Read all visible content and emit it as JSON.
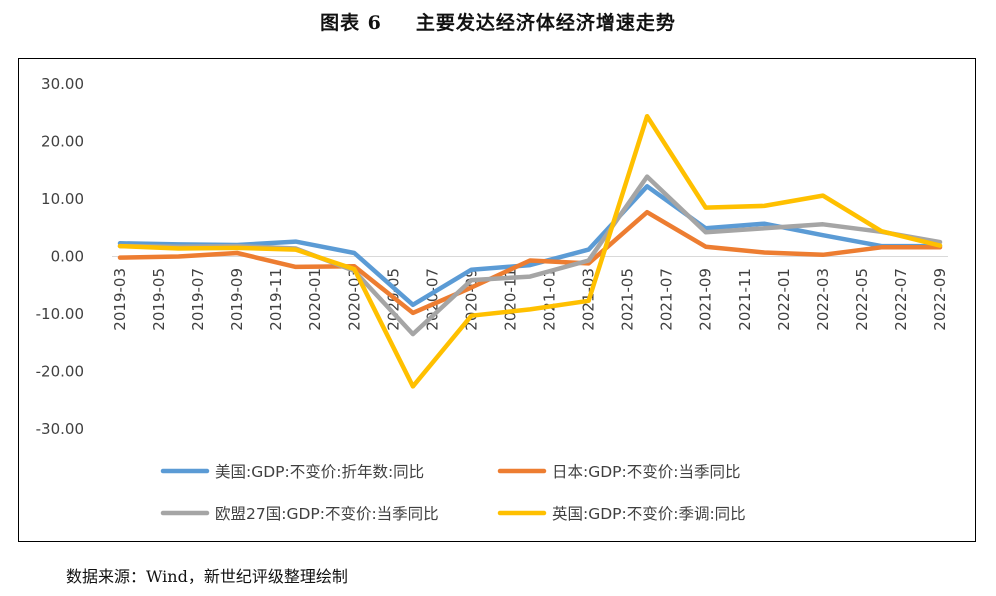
{
  "figure": {
    "label": "图表 6",
    "caption": "主要发达经济体经济增速走势"
  },
  "source_note": "数据来源：Wind，新世纪评级整理绘制",
  "chart_data": {
    "type": "line",
    "title": "主要发达经济体经济增速走势",
    "xlabel": "",
    "ylabel": "",
    "ylim": [
      -30,
      30
    ],
    "yticks": [
      30,
      20,
      10,
      0,
      -10,
      -20,
      -30
    ],
    "ytick_labels": [
      "30.00",
      "20.00",
      "10.00",
      "0.00",
      "-10.00",
      "-20.00",
      "-30.00"
    ],
    "grid": false,
    "legend_position": "bottom",
    "categories": [
      "2019-03",
      "2019-05",
      "2019-07",
      "2019-09",
      "2019-11",
      "2020-01",
      "2020-03",
      "2020-05",
      "2020-07",
      "2020-09",
      "2020-11",
      "2021-01",
      "2021-03",
      "2021-05",
      "2021-07",
      "2021-09",
      "2021-11",
      "2022-01",
      "2022-03",
      "2022-05",
      "2022-07",
      "2022-09"
    ],
    "series": [
      {
        "name": "美国:GDP:不变价:折年数:同比",
        "color": "#5b9bd5",
        "points": [
          [
            0,
            2.3
          ],
          [
            3,
            2.1
          ],
          [
            6,
            2.0
          ],
          [
            9,
            2.6
          ],
          [
            12,
            0.6
          ],
          [
            15,
            -8.4
          ],
          [
            18,
            -2.3
          ],
          [
            21,
            -1.5
          ],
          [
            24,
            1.2
          ],
          [
            27,
            12.2
          ],
          [
            30,
            4.9
          ],
          [
            33,
            5.7
          ],
          [
            36,
            3.7
          ],
          [
            39,
            1.8
          ],
          [
            42,
            1.8
          ]
        ]
      },
      {
        "name": "日本:GDP:不变价:当季同比",
        "color": "#ed7d31",
        "points": [
          [
            0,
            -0.2
          ],
          [
            3,
            0.0
          ],
          [
            6,
            0.6
          ],
          [
            9,
            -1.8
          ],
          [
            12,
            -1.7
          ],
          [
            15,
            -9.8
          ],
          [
            18,
            -5.4
          ],
          [
            21,
            -0.7
          ],
          [
            24,
            -1.2
          ],
          [
            27,
            7.7
          ],
          [
            30,
            1.7
          ],
          [
            33,
            0.7
          ],
          [
            36,
            0.3
          ],
          [
            39,
            1.6
          ],
          [
            42,
            1.6
          ]
        ]
      },
      {
        "name": "欧盟27国:GDP:不变价:当季同比",
        "color": "#a5a5a5",
        "points": [
          [
            0,
            1.8
          ],
          [
            3,
            1.7
          ],
          [
            6,
            1.8
          ],
          [
            9,
            1.4
          ],
          [
            12,
            -2.5
          ],
          [
            15,
            -13.5
          ],
          [
            18,
            -4.1
          ],
          [
            21,
            -3.5
          ],
          [
            24,
            -0.7
          ],
          [
            27,
            13.9
          ],
          [
            30,
            4.2
          ],
          [
            33,
            4.9
          ],
          [
            36,
            5.6
          ],
          [
            39,
            4.3
          ],
          [
            42,
            2.5
          ]
        ]
      },
      {
        "name": "英国:GDP:不变价:季调:同比",
        "color": "#ffc000",
        "points": [
          [
            0,
            1.8
          ],
          [
            3,
            1.4
          ],
          [
            6,
            1.5
          ],
          [
            9,
            1.2
          ],
          [
            12,
            -2.2
          ],
          [
            15,
            -22.6
          ],
          [
            18,
            -10.3
          ],
          [
            21,
            -9.2
          ],
          [
            24,
            -7.7
          ],
          [
            27,
            24.4
          ],
          [
            30,
            8.5
          ],
          [
            33,
            8.8
          ],
          [
            36,
            10.6
          ],
          [
            39,
            4.4
          ],
          [
            42,
            1.9
          ]
        ]
      }
    ]
  }
}
